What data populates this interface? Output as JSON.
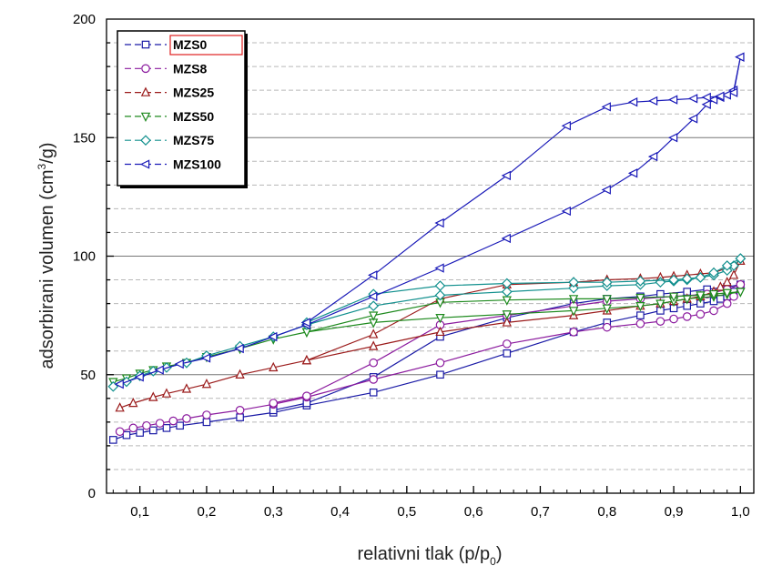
{
  "chart_data": {
    "type": "line",
    "xlabel": "relativni tlak (p/p",
    "xlabel_sub": "0",
    "xlabel_end": ")",
    "ylabel": "adsorbirani volumen (cm",
    "ylabel_sup": "3",
    "ylabel_end": "/g)",
    "xlim": [
      0.05,
      1.02
    ],
    "ylim": [
      0,
      200
    ],
    "x_ticks": [
      0.1,
      0.2,
      0.3,
      0.4,
      0.5,
      0.6,
      0.7,
      0.8,
      0.9,
      1.0
    ],
    "x_tick_labels": [
      "0,1",
      "0,2",
      "0,3",
      "0,4",
      "0,5",
      "0,6",
      "0,7",
      "0,8",
      "0,9",
      "1,0"
    ],
    "y_ticks": [
      0,
      50,
      100,
      150,
      200
    ],
    "y_tick_labels": [
      "0",
      "50",
      "100",
      "150",
      "200"
    ],
    "grid": "horizontal dashed minor, solid major",
    "legend_position": "top-left",
    "series": [
      {
        "name": "MZS0",
        "color": "#1a1aa6",
        "marker": "square",
        "adsorption": [
          [
            0.06,
            22.5
          ],
          [
            0.08,
            24.5
          ],
          [
            0.1,
            25.5
          ],
          [
            0.12,
            26.5
          ],
          [
            0.14,
            27.5
          ],
          [
            0.16,
            28.5
          ],
          [
            0.2,
            30
          ],
          [
            0.25,
            32
          ],
          [
            0.3,
            34
          ],
          [
            0.35,
            37
          ],
          [
            0.45,
            42.5
          ],
          [
            0.55,
            50
          ],
          [
            0.65,
            59
          ],
          [
            0.75,
            68
          ],
          [
            0.8,
            72
          ],
          [
            0.85,
            75
          ],
          [
            0.88,
            77
          ],
          [
            0.9,
            78
          ],
          [
            0.92,
            79
          ],
          [
            0.94,
            80
          ],
          [
            0.96,
            81
          ],
          [
            0.97,
            82
          ],
          [
            0.98,
            83
          ],
          [
            0.99,
            85
          ],
          [
            1.0,
            88
          ]
        ],
        "desorption": [
          [
            1.0,
            88
          ],
          [
            0.98,
            87
          ],
          [
            0.95,
            86
          ],
          [
            0.92,
            85
          ],
          [
            0.88,
            84
          ],
          [
            0.85,
            83
          ],
          [
            0.8,
            82
          ],
          [
            0.75,
            80
          ],
          [
            0.65,
            74
          ],
          [
            0.55,
            66
          ],
          [
            0.45,
            49
          ],
          [
            0.35,
            38
          ],
          [
            0.3,
            35
          ]
        ]
      },
      {
        "name": "MZS8",
        "color": "#8b1a9e",
        "marker": "circle",
        "adsorption": [
          [
            0.07,
            26
          ],
          [
            0.09,
            27.5
          ],
          [
            0.11,
            28.5
          ],
          [
            0.13,
            29.5
          ],
          [
            0.15,
            30.5
          ],
          [
            0.17,
            31.5
          ],
          [
            0.2,
            33
          ],
          [
            0.25,
            35
          ],
          [
            0.3,
            37.5
          ],
          [
            0.35,
            40.5
          ],
          [
            0.45,
            48
          ],
          [
            0.55,
            55
          ],
          [
            0.65,
            63
          ],
          [
            0.75,
            68
          ],
          [
            0.8,
            70
          ],
          [
            0.85,
            71.5
          ],
          [
            0.88,
            72.5
          ],
          [
            0.9,
            73.5
          ],
          [
            0.92,
            74.5
          ],
          [
            0.94,
            75.5
          ],
          [
            0.96,
            77
          ],
          [
            0.98,
            80
          ],
          [
            0.99,
            83
          ],
          [
            1.0,
            88
          ]
        ],
        "desorption": [
          [
            1.0,
            88
          ],
          [
            0.98,
            86
          ],
          [
            0.95,
            84
          ],
          [
            0.9,
            83
          ],
          [
            0.85,
            82
          ],
          [
            0.8,
            81
          ],
          [
            0.75,
            79
          ],
          [
            0.65,
            75
          ],
          [
            0.55,
            71
          ],
          [
            0.45,
            55
          ],
          [
            0.35,
            41
          ],
          [
            0.3,
            38
          ]
        ]
      },
      {
        "name": "MZS25",
        "color": "#9b1c1c",
        "marker": "triangle-up",
        "adsorption": [
          [
            0.07,
            36
          ],
          [
            0.09,
            38
          ],
          [
            0.12,
            40.5
          ],
          [
            0.14,
            42
          ],
          [
            0.17,
            44
          ],
          [
            0.2,
            46
          ],
          [
            0.25,
            50
          ],
          [
            0.3,
            53
          ],
          [
            0.35,
            56
          ],
          [
            0.45,
            62
          ],
          [
            0.55,
            68
          ],
          [
            0.65,
            72
          ],
          [
            0.75,
            75
          ],
          [
            0.8,
            77
          ],
          [
            0.85,
            79
          ],
          [
            0.88,
            80
          ],
          [
            0.9,
            81
          ],
          [
            0.92,
            82
          ],
          [
            0.94,
            83
          ],
          [
            0.96,
            85
          ],
          [
            0.97,
            87
          ],
          [
            0.98,
            89
          ],
          [
            0.99,
            92
          ],
          [
            1.0,
            98
          ]
        ],
        "desorption": [
          [
            1.0,
            98
          ],
          [
            0.98,
            95
          ],
          [
            0.96,
            93
          ],
          [
            0.94,
            92.5
          ],
          [
            0.92,
            92
          ],
          [
            0.9,
            91.5
          ],
          [
            0.88,
            91
          ],
          [
            0.85,
            90.5
          ],
          [
            0.8,
            90
          ],
          [
            0.75,
            89
          ],
          [
            0.65,
            88
          ],
          [
            0.55,
            82
          ],
          [
            0.45,
            67
          ],
          [
            0.35,
            56
          ]
        ]
      },
      {
        "name": "MZS50",
        "color": "#1e8a1e",
        "marker": "triangle-down",
        "adsorption": [
          [
            0.06,
            47
          ],
          [
            0.08,
            48.5
          ],
          [
            0.1,
            50.5
          ],
          [
            0.12,
            52
          ],
          [
            0.14,
            53.5
          ],
          [
            0.17,
            55
          ],
          [
            0.2,
            57.5
          ],
          [
            0.25,
            61
          ],
          [
            0.3,
            65
          ],
          [
            0.35,
            68
          ],
          [
            0.45,
            72
          ],
          [
            0.55,
            74
          ],
          [
            0.65,
            75.5
          ],
          [
            0.75,
            77
          ],
          [
            0.8,
            78
          ],
          [
            0.85,
            79
          ],
          [
            0.88,
            80
          ],
          [
            0.9,
            81
          ],
          [
            0.92,
            82
          ],
          [
            0.94,
            82.5
          ],
          [
            0.96,
            83
          ],
          [
            0.98,
            84
          ],
          [
            1.0,
            85
          ]
        ],
        "desorption": [
          [
            1.0,
            85
          ],
          [
            0.98,
            84.5
          ],
          [
            0.96,
            84
          ],
          [
            0.94,
            83.5
          ],
          [
            0.9,
            83
          ],
          [
            0.85,
            82.5
          ],
          [
            0.8,
            82
          ],
          [
            0.75,
            82
          ],
          [
            0.65,
            81.5
          ],
          [
            0.55,
            80.5
          ],
          [
            0.45,
            75
          ],
          [
            0.35,
            68
          ]
        ]
      },
      {
        "name": "MZS75",
        "color": "#12908e",
        "marker": "diamond",
        "adsorption": [
          [
            0.06,
            45
          ],
          [
            0.08,
            47
          ],
          [
            0.1,
            49.5
          ],
          [
            0.12,
            51.5
          ],
          [
            0.14,
            53
          ],
          [
            0.17,
            55
          ],
          [
            0.2,
            58
          ],
          [
            0.25,
            62
          ],
          [
            0.3,
            66
          ],
          [
            0.35,
            71
          ],
          [
            0.45,
            79
          ],
          [
            0.55,
            83.5
          ],
          [
            0.65,
            85
          ],
          [
            0.75,
            86.5
          ],
          [
            0.8,
            87.5
          ],
          [
            0.85,
            88
          ],
          [
            0.88,
            89
          ],
          [
            0.9,
            89.5
          ],
          [
            0.92,
            90
          ],
          [
            0.94,
            91
          ],
          [
            0.96,
            92
          ],
          [
            0.98,
            94
          ],
          [
            0.99,
            96
          ],
          [
            1.0,
            99
          ]
        ],
        "desorption": [
          [
            1.0,
            99
          ],
          [
            0.98,
            96
          ],
          [
            0.96,
            93
          ],
          [
            0.94,
            91
          ],
          [
            0.92,
            90.5
          ],
          [
            0.9,
            90
          ],
          [
            0.85,
            89.5
          ],
          [
            0.8,
            89
          ],
          [
            0.75,
            89
          ],
          [
            0.65,
            88.5
          ],
          [
            0.55,
            87.5
          ],
          [
            0.45,
            84
          ],
          [
            0.35,
            72
          ]
        ]
      },
      {
        "name": "MZS100",
        "color": "#1a1ab8",
        "marker": "triangle-left",
        "adsorption": [
          [
            0.07,
            46
          ],
          [
            0.1,
            49
          ],
          [
            0.13,
            52
          ],
          [
            0.16,
            54.5
          ],
          [
            0.2,
            57
          ],
          [
            0.25,
            61
          ],
          [
            0.3,
            66
          ],
          [
            0.35,
            71
          ],
          [
            0.45,
            83
          ],
          [
            0.55,
            95
          ],
          [
            0.65,
            107.5
          ],
          [
            0.74,
            119
          ],
          [
            0.8,
            128
          ],
          [
            0.84,
            135
          ],
          [
            0.87,
            142
          ],
          [
            0.9,
            150
          ],
          [
            0.93,
            158
          ],
          [
            0.95,
            164
          ],
          [
            0.96,
            166
          ],
          [
            0.97,
            167
          ],
          [
            0.98,
            168
          ],
          [
            0.99,
            170
          ],
          [
            1.0,
            184
          ]
        ],
        "desorption": [
          [
            1.0,
            184
          ],
          [
            0.99,
            169
          ],
          [
            0.98,
            168
          ],
          [
            0.97,
            167.5
          ],
          [
            0.95,
            167
          ],
          [
            0.93,
            166.5
          ],
          [
            0.9,
            166
          ],
          [
            0.87,
            165.5
          ],
          [
            0.84,
            165
          ],
          [
            0.8,
            163
          ],
          [
            0.74,
            155
          ],
          [
            0.65,
            134
          ],
          [
            0.55,
            114
          ],
          [
            0.45,
            92
          ],
          [
            0.35,
            72
          ]
        ]
      }
    ]
  }
}
